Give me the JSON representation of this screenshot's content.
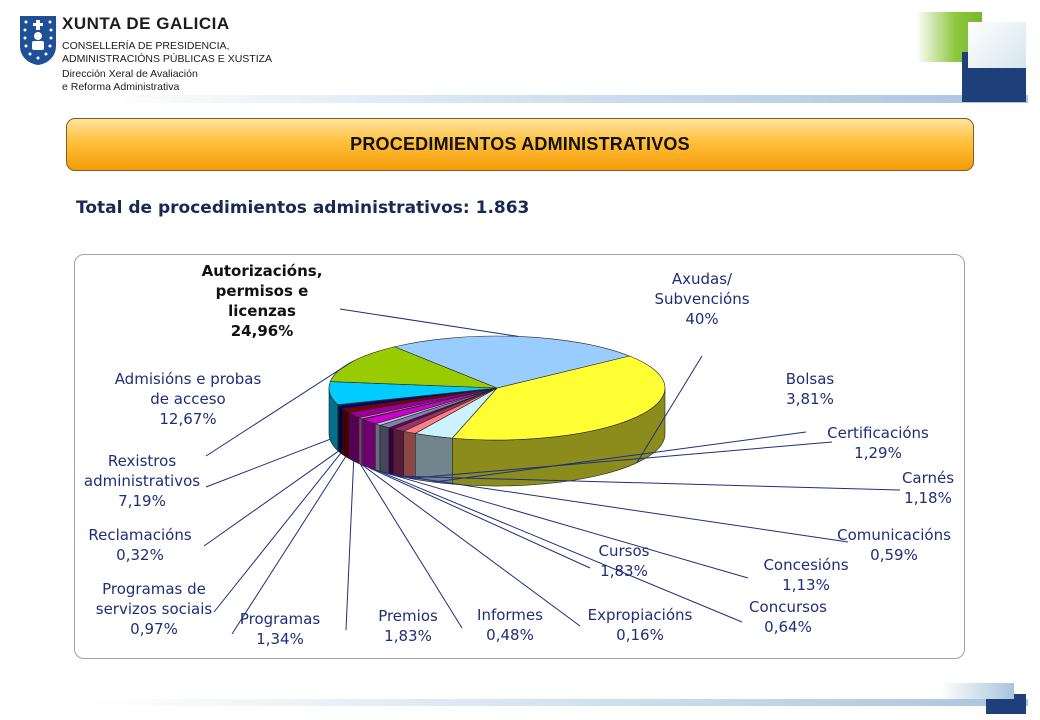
{
  "header": {
    "org_name": "XUNTA DE GALICIA",
    "org_lines": [
      "CONSELLERÍA DE PRESIDENCIA,",
      "ADMINISTRACIÓNS PÚBLICAS E XUSTIZA",
      "Dirección Xeral de Avaliación",
      "e Reforma Administrativa"
    ]
  },
  "banner": {
    "title": "PROCEDIMIENTOS ADMINISTRATIVOS"
  },
  "total": {
    "label": "Total de procedimientos administrativos:",
    "value": "1.863"
  },
  "colors": {
    "accent_orange": "#f7a21b",
    "label_text": "#1e2f78",
    "brand_green": "#8dc63f",
    "brand_blue": "#1f3f7a"
  },
  "chart_data": {
    "type": "pie",
    "title": "",
    "slices": [
      {
        "lines": [
          "Axudas/",
          "Subvencións"
        ],
        "pct": "40%",
        "value": 40,
        "color": "#ffff33",
        "bold": false
      },
      {
        "lines": [
          "Bolsas"
        ],
        "pct": "3,81%",
        "value": 3.81,
        "color": "#ccf2ff",
        "bold": false
      },
      {
        "lines": [
          "Certificacións"
        ],
        "pct": "1,29%",
        "value": 1.29,
        "color": "#ff8080",
        "bold": false
      },
      {
        "lines": [
          "Carnés"
        ],
        "pct": "1,18%",
        "value": 1.18,
        "color": "#993366",
        "bold": false
      },
      {
        "lines": [
          "Comunicacións"
        ],
        "pct": "0,59%",
        "value": 0.59,
        "color": "#660066",
        "bold": false
      },
      {
        "lines": [
          "Concesións"
        ],
        "pct": "1,13%",
        "value": 1.13,
        "color": "#8080a8",
        "bold": false
      },
      {
        "lines": [
          "Concursos"
        ],
        "pct": "0,64%",
        "value": 0.64,
        "color": "#c0c0e0",
        "bold": false
      },
      {
        "lines": [
          "Cursos"
        ],
        "pct": "1,83%",
        "value": 1.83,
        "color": "#cc00cc",
        "bold": false
      },
      {
        "lines": [
          "Expropiacións"
        ],
        "pct": "0,16%",
        "value": 0.16,
        "color": "#33ccff",
        "bold": false
      },
      {
        "lines": [
          "Informes"
        ],
        "pct": "0,48%",
        "value": 0.48,
        "color": "#ff66cc",
        "bold": false
      },
      {
        "lines": [
          "Premios"
        ],
        "pct": "1,83%",
        "value": 1.83,
        "color": "#990099",
        "bold": false
      },
      {
        "lines": [
          "Programas"
        ],
        "pct": "1,34%",
        "value": 1.34,
        "color": "#800000",
        "bold": false
      },
      {
        "lines": [
          "Programas de",
          "servizos sociais"
        ],
        "pct": "0,97%",
        "value": 0.97,
        "color": "#000080",
        "bold": false
      },
      {
        "lines": [
          "Reclamacións"
        ],
        "pct": "0,32%",
        "value": 0.32,
        "color": "#003366",
        "bold": false
      },
      {
        "lines": [
          "Rexistros",
          "administrativos"
        ],
        "pct": "7,19%",
        "value": 7.19,
        "color": "#00ccff",
        "bold": false
      },
      {
        "lines": [
          "Admisións e probas",
          "de acceso"
        ],
        "pct": "12,67%",
        "value": 12.67,
        "color": "#99cc00",
        "bold": false
      },
      {
        "lines": [
          "Autorizacións,",
          "permisos e",
          "licenzas"
        ],
        "pct": "24,96%",
        "value": 24.96,
        "color": "#99ccff",
        "bold": true
      }
    ],
    "legend": "none",
    "grid": false
  }
}
